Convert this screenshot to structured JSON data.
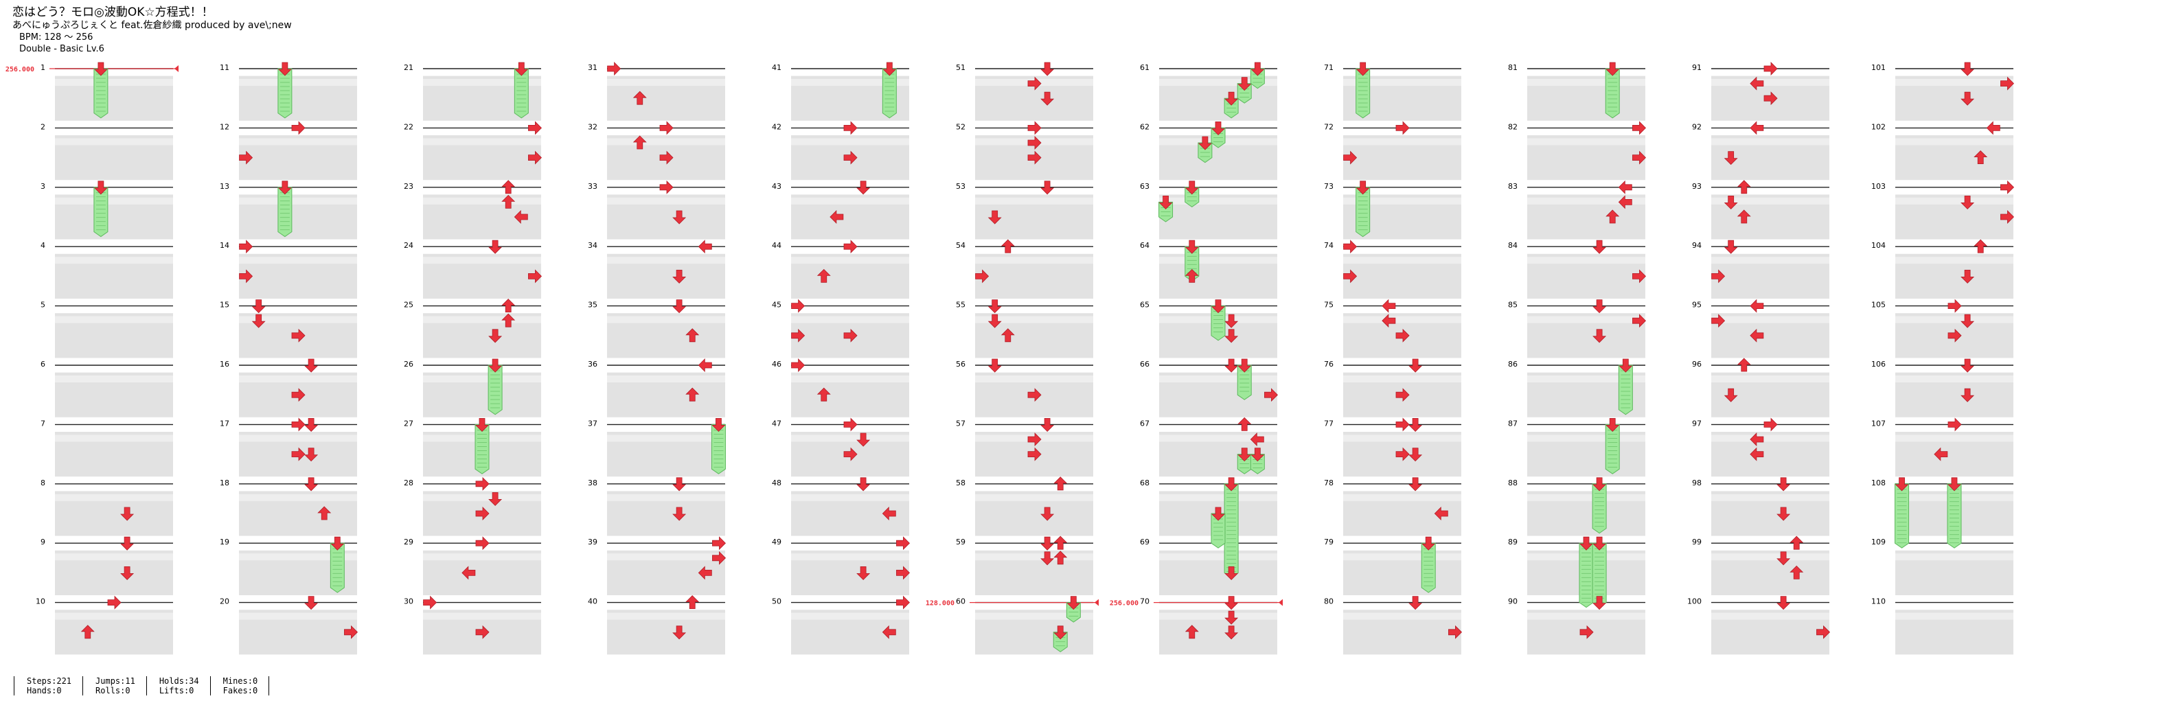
{
  "song": {
    "title": "恋はどう？モロ◎波動OK☆方程式！！",
    "artist_line": "あべにゅうぷろじぇくと feat.佐倉紗織 produced by ave\\;new",
    "bpm": "BPM: 128 ～ 256",
    "difficulty": "Double - Basic Lv.6"
  },
  "stats": [
    {
      "line1": "Steps:221",
      "line2": "Hands:0"
    },
    {
      "line1": "Jumps:11",
      "line2": "Rolls:0"
    },
    {
      "line1": "Holds:34",
      "line2": "Lifts:0"
    },
    {
      "line1": "Mines:0",
      "line2": "Fakes:0"
    }
  ],
  "bpm_labels": [
    {
      "measure": 1,
      "text": "256.000"
    },
    {
      "measure": 60,
      "text": "128.000"
    },
    {
      "measure": 70,
      "text": "256.000"
    }
  ],
  "colors": {
    "note": "#e8323c",
    "hold_fill": "#9ee89a",
    "hold_stroke": "#5cb85c",
    "lane_band": "#e2e2e2",
    "bpm_marker": "#e8323c"
  },
  "measure_count": 110,
  "lane_count": 8,
  "notes": [
    {
      "m": 1,
      "b": 0,
      "l": 3,
      "t": "hold",
      "len": 3
    },
    {
      "m": 1,
      "b": 0,
      "l": 3,
      "t": "hold_end"
    },
    {
      "m": 3,
      "b": 0,
      "l": 3,
      "t": "hold",
      "len": 3
    },
    {
      "m": 8,
      "b": 2,
      "l": 5,
      "t": "tap"
    },
    {
      "m": 9,
      "b": 0,
      "l": 5,
      "t": "tap"
    },
    {
      "m": 9,
      "b": 2,
      "l": 5,
      "t": "tap"
    },
    {
      "m": 10,
      "b": 0,
      "l": 4,
      "t": "tap"
    },
    {
      "m": 10,
      "b": 2,
      "l": 2,
      "t": "tap"
    },
    {
      "m": 11,
      "b": 0,
      "l": 3,
      "t": "hold",
      "len": 3
    },
    {
      "m": 12,
      "b": 0,
      "l": 4,
      "t": "tap"
    },
    {
      "m": 12,
      "b": 2,
      "l": 0,
      "t": "tap"
    },
    {
      "m": 13,
      "b": 0,
      "l": 3,
      "t": "hold",
      "len": 3
    },
    {
      "m": 14,
      "b": 0,
      "l": 0,
      "t": "tap"
    },
    {
      "m": 14,
      "b": 2,
      "l": 0,
      "t": "tap"
    },
    {
      "m": 15,
      "b": 0,
      "l": 1,
      "t": "tap"
    },
    {
      "m": 15,
      "b": 1,
      "l": 1,
      "t": "tap"
    },
    {
      "m": 15,
      "b": 2,
      "l": 4,
      "t": "tap"
    },
    {
      "m": 16,
      "b": 0,
      "l": 5,
      "t": "tap"
    },
    {
      "m": 16,
      "b": 2,
      "l": 4,
      "t": "tap"
    },
    {
      "m": 17,
      "b": 0,
      "l": 4,
      "t": "tap"
    },
    {
      "m": 17,
      "b": 0,
      "l": 5,
      "t": "tap"
    },
    {
      "m": 17,
      "b": 2,
      "l": 4,
      "t": "tap"
    },
    {
      "m": 17,
      "b": 2,
      "l": 5,
      "t": "tap"
    },
    {
      "m": 18,
      "b": 0,
      "l": 5,
      "t": "tap"
    },
    {
      "m": 18,
      "b": 2,
      "l": 6,
      "t": "tap"
    },
    {
      "m": 19,
      "b": 0,
      "l": 7,
      "t": "hold",
      "len": 3
    },
    {
      "m": 20,
      "b": 0,
      "l": 5,
      "t": "tap"
    },
    {
      "m": 20,
      "b": 2,
      "l": 8,
      "t": "tap"
    },
    {
      "m": 21,
      "b": 0,
      "l": 7,
      "t": "hold",
      "len": 3
    },
    {
      "m": 22,
      "b": 0,
      "l": 8,
      "t": "tap"
    },
    {
      "m": 22,
      "b": 2,
      "l": 8,
      "t": "tap"
    },
    {
      "m": 23,
      "b": 0,
      "l": 6,
      "t": "tap"
    },
    {
      "m": 23,
      "b": 1,
      "l": 6,
      "t": "tap"
    },
    {
      "m": 23,
      "b": 2,
      "l": 7,
      "t": "tap"
    },
    {
      "m": 24,
      "b": 0,
      "l": 5,
      "t": "tap"
    },
    {
      "m": 24,
      "b": 2,
      "l": 8,
      "t": "tap"
    },
    {
      "m": 25,
      "b": 0,
      "l": 6,
      "t": "tap"
    },
    {
      "m": 25,
      "b": 1,
      "l": 6,
      "t": "tap"
    },
    {
      "m": 25,
      "b": 2,
      "l": 5,
      "t": "tap"
    },
    {
      "m": 26,
      "b": 0,
      "l": 5,
      "t": "hold",
      "len": 3
    },
    {
      "m": 27,
      "b": 0,
      "l": 4,
      "t": "hold",
      "len": 3
    },
    {
      "m": 28,
      "b": 0,
      "l": 4,
      "t": "tap"
    },
    {
      "m": 28,
      "b": 1,
      "l": 5,
      "t": "tap"
    },
    {
      "m": 28,
      "b": 2,
      "l": 4,
      "t": "tap"
    },
    {
      "m": 29,
      "b": 0,
      "l": 4,
      "t": "tap"
    },
    {
      "m": 29,
      "b": 2,
      "l": 3,
      "t": "tap"
    },
    {
      "m": 30,
      "b": 0,
      "l": 0,
      "t": "tap"
    },
    {
      "m": 30,
      "b": 2,
      "l": 4,
      "t": "tap"
    },
    {
      "m": 31,
      "b": 0,
      "l": 0,
      "t": "tap"
    },
    {
      "m": 31,
      "b": 2,
      "l": 2,
      "t": "tap"
    },
    {
      "m": 32,
      "b": 0,
      "l": 4,
      "t": "tap"
    },
    {
      "m": 32,
      "b": 1,
      "l": 2,
      "t": "tap"
    },
    {
      "m": 32,
      "b": 2,
      "l": 4,
      "t": "tap"
    },
    {
      "m": 33,
      "b": 0,
      "l": 4,
      "t": "tap"
    },
    {
      "m": 33,
      "b": 2,
      "l": 5,
      "t": "tap"
    },
    {
      "m": 34,
      "b": 0,
      "l": 7,
      "t": "tap"
    },
    {
      "m": 34,
      "b": 2,
      "l": 5,
      "t": "tap"
    },
    {
      "m": 35,
      "b": 0,
      "l": 5,
      "t": "tap"
    },
    {
      "m": 35,
      "b": 2,
      "l": 6,
      "t": "tap"
    },
    {
      "m": 36,
      "b": 0,
      "l": 7,
      "t": "tap"
    },
    {
      "m": 36,
      "b": 2,
      "l": 6,
      "t": "tap"
    },
    {
      "m": 37,
      "b": 0,
      "l": 8,
      "t": "hold",
      "len": 3
    },
    {
      "m": 38,
      "b": 0,
      "l": 5,
      "t": "tap"
    },
    {
      "m": 38,
      "b": 2,
      "l": 5,
      "t": "tap"
    },
    {
      "m": 39,
      "b": 0,
      "l": 8,
      "t": "tap"
    },
    {
      "m": 39,
      "b": 1,
      "l": 8,
      "t": "tap"
    },
    {
      "m": 39,
      "b": 2,
      "l": 7,
      "t": "tap"
    },
    {
      "m": 40,
      "b": 0,
      "l": 6,
      "t": "tap"
    },
    {
      "m": 40,
      "b": 2,
      "l": 5,
      "t": "tap"
    },
    {
      "m": 41,
      "b": 0,
      "l": 7,
      "t": "hold",
      "len": 3
    },
    {
      "m": 42,
      "b": 0,
      "l": 4,
      "t": "tap"
    },
    {
      "m": 42,
      "b": 2,
      "l": 4,
      "t": "tap"
    },
    {
      "m": 43,
      "b": 0,
      "l": 5,
      "t": "tap"
    },
    {
      "m": 43,
      "b": 2,
      "l": 3,
      "t": "tap"
    },
    {
      "m": 44,
      "b": 0,
      "l": 4,
      "t": "tap"
    },
    {
      "m": 44,
      "b": 2,
      "l": 2,
      "t": "tap"
    },
    {
      "m": 45,
      "b": 0,
      "l": 0,
      "t": "tap"
    },
    {
      "m": 45,
      "b": 2,
      "l": 0,
      "t": "tap"
    },
    {
      "m": 45,
      "b": 2,
      "l": 4,
      "t": "tap"
    },
    {
      "m": 46,
      "b": 0,
      "l": 0,
      "t": "tap"
    },
    {
      "m": 46,
      "b": 2,
      "l": 2,
      "t": "tap"
    },
    {
      "m": 47,
      "b": 0,
      "l": 4,
      "t": "tap"
    },
    {
      "m": 47,
      "b": 1,
      "l": 5,
      "t": "tap"
    },
    {
      "m": 47,
      "b": 2,
      "l": 4,
      "t": "tap"
    },
    {
      "m": 48,
      "b": 0,
      "l": 5,
      "t": "tap"
    },
    {
      "m": 48,
      "b": 2,
      "l": 7,
      "t": "tap"
    },
    {
      "m": 49,
      "b": 0,
      "l": 8,
      "t": "tap"
    },
    {
      "m": 49,
      "b": 2,
      "l": 5,
      "t": "tap"
    },
    {
      "m": 49,
      "b": 2,
      "l": 8,
      "t": "tap"
    },
    {
      "m": 50,
      "b": 0,
      "l": 8,
      "t": "tap"
    },
    {
      "m": 50,
      "b": 2,
      "l": 7,
      "t": "tap"
    },
    {
      "m": 51,
      "b": 0,
      "l": 5,
      "t": "tap"
    },
    {
      "m": 51,
      "b": 1,
      "l": 4,
      "t": "tap"
    },
    {
      "m": 51,
      "b": 2,
      "l": 5,
      "t": "tap"
    },
    {
      "m": 52,
      "b": 0,
      "l": 4,
      "t": "tap"
    },
    {
      "m": 52,
      "b": 1,
      "l": 4,
      "t": "tap"
    },
    {
      "m": 52,
      "b": 2,
      "l": 4,
      "t": "tap"
    },
    {
      "m": 53,
      "b": 0,
      "l": 5,
      "t": "tap"
    },
    {
      "m": 53,
      "b": 2,
      "l": 1,
      "t": "tap"
    },
    {
      "m": 54,
      "b": 0,
      "l": 2,
      "t": "tap"
    },
    {
      "m": 54,
      "b": 2,
      "l": 0,
      "t": "tap"
    },
    {
      "m": 55,
      "b": 0,
      "l": 1,
      "t": "tap"
    },
    {
      "m": 55,
      "b": 1,
      "l": 1,
      "t": "tap"
    },
    {
      "m": 55,
      "b": 2,
      "l": 2,
      "t": "tap"
    },
    {
      "m": 56,
      "b": 0,
      "l": 1,
      "t": "tap"
    },
    {
      "m": 56,
      "b": 2,
      "l": 4,
      "t": "tap"
    },
    {
      "m": 57,
      "b": 0,
      "l": 5,
      "t": "tap"
    },
    {
      "m": 57,
      "b": 1,
      "l": 4,
      "t": "tap"
    },
    {
      "m": 57,
      "b": 2,
      "l": 4,
      "t": "tap"
    },
    {
      "m": 58,
      "b": 0,
      "l": 6,
      "t": "tap"
    },
    {
      "m": 58,
      "b": 2,
      "l": 5,
      "t": "tap"
    },
    {
      "m": 59,
      "b": 0,
      "l": 5,
      "t": "tap"
    },
    {
      "m": 59,
      "b": 0,
      "l": 6,
      "t": "tap"
    },
    {
      "m": 59,
      "b": 1,
      "l": 5,
      "t": "tap"
    },
    {
      "m": 59,
      "b": 1,
      "l": 6,
      "t": "tap"
    },
    {
      "m": 60,
      "b": 0,
      "l": 7,
      "t": "hold",
      "len": 1
    },
    {
      "m": 60,
      "b": 2,
      "l": 6,
      "t": "hold",
      "len": 1
    },
    {
      "m": 61,
      "b": 0,
      "l": 7,
      "t": "hold",
      "len": 1
    },
    {
      "m": 61,
      "b": 1,
      "l": 6,
      "t": "hold",
      "len": 1
    },
    {
      "m": 61,
      "b": 2,
      "l": 5,
      "t": "hold",
      "len": 1
    },
    {
      "m": 62,
      "b": 0,
      "l": 4,
      "t": "hold",
      "len": 1
    },
    {
      "m": 62,
      "b": 1,
      "l": 3,
      "t": "hold",
      "len": 1
    },
    {
      "m": 63,
      "b": 0,
      "l": 2,
      "t": "hold",
      "len": 1
    },
    {
      "m": 63,
      "b": 1,
      "l": 0,
      "t": "hold",
      "len": 1
    },
    {
      "m": 64,
      "b": 0,
      "l": 2,
      "t": "hold",
      "len": 2
    },
    {
      "m": 64,
      "b": 2,
      "l": 2,
      "t": "tap"
    },
    {
      "m": 65,
      "b": 0,
      "l": 4,
      "t": "hold",
      "len": 2
    },
    {
      "m": 65,
      "b": 1,
      "l": 5,
      "t": "tap"
    },
    {
      "m": 65,
      "b": 2,
      "l": 5,
      "t": "tap"
    },
    {
      "m": 66,
      "b": 0,
      "l": 5,
      "t": "tap"
    },
    {
      "m": 66,
      "b": 0,
      "l": 6,
      "t": "hold",
      "len": 2
    },
    {
      "m": 66,
      "b": 2,
      "l": 8,
      "t": "tap"
    },
    {
      "m": 67,
      "b": 0,
      "l": 6,
      "t": "tap"
    },
    {
      "m": 67,
      "b": 1,
      "l": 7,
      "t": "tap"
    },
    {
      "m": 67,
      "b": 2,
      "l": 6,
      "t": "hold",
      "len": 1
    },
    {
      "m": 67,
      "b": 2,
      "l": 7,
      "t": "hold",
      "len": 1
    },
    {
      "m": 68,
      "b": 0,
      "l": 5,
      "t": "hold",
      "len": 6
    },
    {
      "m": 68,
      "b": 2,
      "l": 4,
      "t": "hold",
      "len": 2
    },
    {
      "m": 69,
      "b": 2,
      "l": 5,
      "t": "tap"
    },
    {
      "m": 70,
      "b": 0,
      "l": 5,
      "t": "tap"
    },
    {
      "m": 70,
      "b": 1,
      "l": 5,
      "t": "tap"
    },
    {
      "m": 70,
      "b": 2,
      "l": 5,
      "t": "tap"
    },
    {
      "m": 70,
      "b": 2,
      "l": 2,
      "t": "tap"
    },
    {
      "m": 71,
      "b": 0,
      "l": 1,
      "t": "hold",
      "len": 3
    },
    {
      "m": 72,
      "b": 0,
      "l": 4,
      "t": "tap"
    },
    {
      "m": 72,
      "b": 2,
      "l": 0,
      "t": "tap"
    },
    {
      "m": 73,
      "b": 0,
      "l": 1,
      "t": "hold",
      "len": 3
    },
    {
      "m": 74,
      "b": 0,
      "l": 0,
      "t": "tap"
    },
    {
      "m": 74,
      "b": 2,
      "l": 0,
      "t": "tap"
    },
    {
      "m": 75,
      "b": 0,
      "l": 3,
      "t": "tap"
    },
    {
      "m": 75,
      "b": 1,
      "l": 3,
      "t": "tap"
    },
    {
      "m": 75,
      "b": 2,
      "l": 4,
      "t": "tap"
    },
    {
      "m": 76,
      "b": 0,
      "l": 5,
      "t": "tap"
    },
    {
      "m": 76,
      "b": 2,
      "l": 4,
      "t": "tap"
    },
    {
      "m": 77,
      "b": 0,
      "l": 4,
      "t": "tap"
    },
    {
      "m": 77,
      "b": 0,
      "l": 5,
      "t": "tap"
    },
    {
      "m": 77,
      "b": 2,
      "l": 4,
      "t": "tap"
    },
    {
      "m": 77,
      "b": 2,
      "l": 5,
      "t": "tap"
    },
    {
      "m": 78,
      "b": 0,
      "l": 5,
      "t": "tap"
    },
    {
      "m": 78,
      "b": 2,
      "l": 7,
      "t": "tap"
    },
    {
      "m": 79,
      "b": 0,
      "l": 6,
      "t": "hold",
      "len": 3
    },
    {
      "m": 80,
      "b": 0,
      "l": 5,
      "t": "tap"
    },
    {
      "m": 80,
      "b": 2,
      "l": 8,
      "t": "tap"
    },
    {
      "m": 81,
      "b": 0,
      "l": 6,
      "t": "hold",
      "len": 3
    },
    {
      "m": 82,
      "b": 0,
      "l": 8,
      "t": "tap"
    },
    {
      "m": 82,
      "b": 2,
      "l": 8,
      "t": "tap"
    },
    {
      "m": 83,
      "b": 0,
      "l": 7,
      "t": "tap"
    },
    {
      "m": 83,
      "b": 1,
      "l": 7,
      "t": "tap"
    },
    {
      "m": 83,
      "b": 2,
      "l": 6,
      "t": "tap"
    },
    {
      "m": 84,
      "b": 0,
      "l": 5,
      "t": "tap"
    },
    {
      "m": 84,
      "b": 2,
      "l": 8,
      "t": "tap"
    },
    {
      "m": 85,
      "b": 0,
      "l": 5,
      "t": "tap"
    },
    {
      "m": 85,
      "b": 1,
      "l": 8,
      "t": "tap"
    },
    {
      "m": 85,
      "b": 2,
      "l": 5,
      "t": "tap"
    },
    {
      "m": 86,
      "b": 0,
      "l": 7,
      "t": "hold",
      "len": 3
    },
    {
      "m": 87,
      "b": 0,
      "l": 6,
      "t": "hold",
      "len": 3
    },
    {
      "m": 88,
      "b": 0,
      "l": 5,
      "t": "hold",
      "len": 3
    },
    {
      "m": 89,
      "b": 0,
      "l": 4,
      "t": "hold",
      "len": 4
    },
    {
      "m": 89,
      "b": 0,
      "l": 5,
      "t": "hold",
      "len": 4
    },
    {
      "m": 90,
      "b": 0,
      "l": 5,
      "t": "tap"
    },
    {
      "m": 90,
      "b": 2,
      "l": 4,
      "t": "tap"
    },
    {
      "m": 91,
      "b": 0,
      "l": 4,
      "t": "tap"
    },
    {
      "m": 91,
      "b": 1,
      "l": 3,
      "t": "tap"
    },
    {
      "m": 91,
      "b": 2,
      "l": 4,
      "t": "tap"
    },
    {
      "m": 92,
      "b": 0,
      "l": 3,
      "t": "tap"
    },
    {
      "m": 92,
      "b": 2,
      "l": 1,
      "t": "tap"
    },
    {
      "m": 93,
      "b": 0,
      "l": 2,
      "t": "tap"
    },
    {
      "m": 93,
      "b": 1,
      "l": 1,
      "t": "tap"
    },
    {
      "m": 93,
      "b": 2,
      "l": 2,
      "t": "tap"
    },
    {
      "m": 94,
      "b": 0,
      "l": 1,
      "t": "tap"
    },
    {
      "m": 94,
      "b": 2,
      "l": 0,
      "t": "tap"
    },
    {
      "m": 95,
      "b": 0,
      "l": 3,
      "t": "tap"
    },
    {
      "m": 95,
      "b": 1,
      "l": 0,
      "t": "tap"
    },
    {
      "m": 95,
      "b": 2,
      "l": 3,
      "t": "tap"
    },
    {
      "m": 96,
      "b": 0,
      "l": 2,
      "t": "tap"
    },
    {
      "m": 96,
      "b": 2,
      "l": 1,
      "t": "tap"
    },
    {
      "m": 97,
      "b": 0,
      "l": 4,
      "t": "tap"
    },
    {
      "m": 97,
      "b": 1,
      "l": 3,
      "t": "tap"
    },
    {
      "m": 97,
      "b": 2,
      "l": 3,
      "t": "tap"
    },
    {
      "m": 98,
      "b": 0,
      "l": 5,
      "t": "tap"
    },
    {
      "m": 98,
      "b": 2,
      "l": 5,
      "t": "tap"
    },
    {
      "m": 99,
      "b": 0,
      "l": 6,
      "t": "tap"
    },
    {
      "m": 99,
      "b": 1,
      "l": 5,
      "t": "tap"
    },
    {
      "m": 99,
      "b": 2,
      "l": 6,
      "t": "tap"
    },
    {
      "m": 100,
      "b": 0,
      "l": 5,
      "t": "tap"
    },
    {
      "m": 100,
      "b": 2,
      "l": 8,
      "t": "tap"
    },
    {
      "m": 101,
      "b": 0,
      "l": 5,
      "t": "tap"
    },
    {
      "m": 101,
      "b": 1,
      "l": 8,
      "t": "tap"
    },
    {
      "m": 101,
      "b": 2,
      "l": 5,
      "t": "tap"
    },
    {
      "m": 102,
      "b": 0,
      "l": 7,
      "t": "tap"
    },
    {
      "m": 102,
      "b": 2,
      "l": 6,
      "t": "tap"
    },
    {
      "m": 103,
      "b": 0,
      "l": 8,
      "t": "tap"
    },
    {
      "m": 103,
      "b": 1,
      "l": 5,
      "t": "tap"
    },
    {
      "m": 103,
      "b": 2,
      "l": 8,
      "t": "tap"
    },
    {
      "m": 104,
      "b": 0,
      "l": 6,
      "t": "tap"
    },
    {
      "m": 104,
      "b": 2,
      "l": 5,
      "t": "tap"
    },
    {
      "m": 105,
      "b": 0,
      "l": 4,
      "t": "tap"
    },
    {
      "m": 105,
      "b": 1,
      "l": 5,
      "t": "tap"
    },
    {
      "m": 105,
      "b": 2,
      "l": 4,
      "t": "tap"
    },
    {
      "m": 106,
      "b": 0,
      "l": 5,
      "t": "tap"
    },
    {
      "m": 106,
      "b": 2,
      "l": 5,
      "t": "tap"
    },
    {
      "m": 107,
      "b": 0,
      "l": 4,
      "t": "tap"
    },
    {
      "m": 107,
      "b": 2,
      "l": 3,
      "t": "tap"
    },
    {
      "m": 108,
      "b": 0,
      "l": 0,
      "t": "hold",
      "len": 4
    },
    {
      "m": 108,
      "b": 0,
      "l": 4,
      "t": "hold",
      "len": 4
    }
  ]
}
